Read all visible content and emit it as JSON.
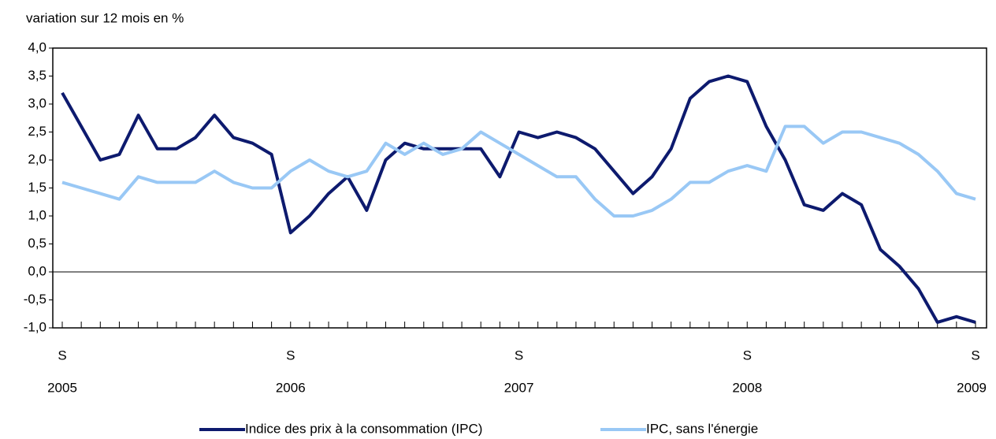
{
  "chart_data": {
    "type": "line",
    "axis_title": "variation sur 12 mois en %",
    "categories": [
      "S",
      null,
      null,
      null,
      null,
      null,
      null,
      null,
      null,
      null,
      null,
      null,
      "S",
      null,
      null,
      null,
      null,
      null,
      null,
      null,
      null,
      null,
      null,
      null,
      "S",
      null,
      null,
      null,
      null,
      null,
      null,
      null,
      null,
      null,
      null,
      null,
      "S",
      null,
      null,
      null,
      null,
      null,
      null,
      null,
      null,
      null,
      null,
      null,
      "S"
    ],
    "years": [
      "2005",
      null,
      null,
      null,
      null,
      null,
      null,
      null,
      null,
      null,
      null,
      null,
      "2006",
      null,
      null,
      null,
      null,
      null,
      null,
      null,
      null,
      null,
      null,
      null,
      "2007",
      null,
      null,
      null,
      null,
      null,
      null,
      null,
      null,
      null,
      null,
      null,
      "2008",
      null,
      null,
      null,
      null,
      null,
      null,
      null,
      null,
      null,
      null,
      null,
      "2009"
    ],
    "series": [
      {
        "name": "Indice des prix à la consommation (IPC)",
        "color": "#0d1a6e",
        "values": [
          3.2,
          2.6,
          2.0,
          2.1,
          2.8,
          2.2,
          2.2,
          2.4,
          2.8,
          2.4,
          2.3,
          2.1,
          0.7,
          1.0,
          1.4,
          1.7,
          1.1,
          2.0,
          2.3,
          2.2,
          2.2,
          2.2,
          2.2,
          1.7,
          2.5,
          2.4,
          2.5,
          2.4,
          2.2,
          1.8,
          1.4,
          1.7,
          2.2,
          3.1,
          3.4,
          3.5,
          3.4,
          2.6,
          2.0,
          1.2,
          1.1,
          1.4,
          1.2,
          0.4,
          0.1,
          -0.3,
          -0.9,
          -0.8,
          -0.9
        ]
      },
      {
        "name": "IPC, sans l'énergie",
        "color": "#99c8f5",
        "values": [
          1.6,
          1.5,
          1.4,
          1.3,
          1.7,
          1.6,
          1.6,
          1.6,
          1.8,
          1.6,
          1.5,
          1.5,
          1.8,
          2.0,
          1.8,
          1.7,
          1.8,
          2.3,
          2.1,
          2.3,
          2.1,
          2.2,
          2.5,
          2.3,
          2.1,
          1.9,
          1.7,
          1.7,
          1.3,
          1.0,
          1.0,
          1.1,
          1.3,
          1.6,
          1.6,
          1.8,
          1.9,
          1.8,
          2.6,
          2.6,
          2.3,
          2.5,
          2.5,
          2.4,
          2.3,
          2.1,
          1.8,
          1.4,
          1.3
        ]
      }
    ],
    "ylim": [
      -1.0,
      4.0
    ],
    "yticks": [
      {
        "value": -1.0,
        "label": "-1,0"
      },
      {
        "value": -0.5,
        "label": "-0,5"
      },
      {
        "value": 0.0,
        "label": "0,0"
      },
      {
        "value": 0.5,
        "label": "0,5"
      },
      {
        "value": 1.0,
        "label": "1,0"
      },
      {
        "value": 1.5,
        "label": "1,5"
      },
      {
        "value": 2.0,
        "label": "2,0"
      },
      {
        "value": 2.5,
        "label": "2,5"
      },
      {
        "value": 3.0,
        "label": "3,0"
      },
      {
        "value": 3.5,
        "label": "3,5"
      },
      {
        "value": 4.0,
        "label": "4,0"
      }
    ],
    "zero_line": true,
    "legend": "bottom"
  }
}
